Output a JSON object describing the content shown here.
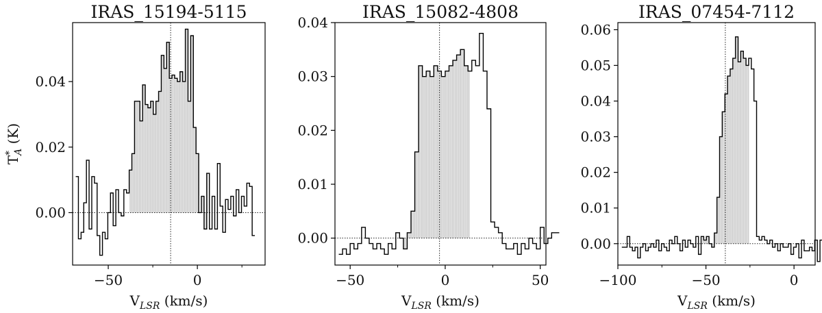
{
  "chart_data": [
    {
      "type": "area",
      "title": "IRAS_15194-5115",
      "xlabel_main": "V",
      "xlabel_sub": "LSR",
      "xlabel_unit": " (km/s)",
      "ylabel_main": "T",
      "ylabel_sup": "*",
      "ylabel_sub": "A",
      "ylabel_unit": " (K)",
      "xlim": [
        -70,
        38
      ],
      "ylim": [
        -0.016,
        0.058
      ],
      "xticks": [
        -50,
        0
      ],
      "xtick_labels": [
        "−50",
        "0"
      ],
      "xminor": [
        -25,
        25
      ],
      "yticks": [
        0.0,
        0.02,
        0.04
      ],
      "ytick_labels": [
        "0.00",
        "0.02",
        "0.04"
      ],
      "systemic_velocity": -15,
      "shade_range": [
        -38,
        6
      ],
      "series": [
        {
          "x0": -67.5,
          "dx": 1.5,
          "values": [
            0.011,
            -0.008,
            -0.006,
            0.003,
            0.016,
            -0.005,
            0.011,
            0.009,
            -0.007,
            -0.013,
            -0.006,
            -0.008,
            0.0,
            0.006,
            -0.004,
            0.007,
            0.0,
            -0.001,
            0.007,
            0.006,
            0.013,
            0.018,
            0.034,
            0.034,
            0.028,
            0.039,
            0.033,
            0.032,
            0.034,
            0.03,
            0.034,
            0.037,
            0.048,
            0.044,
            0.052,
            0.041,
            0.042,
            0.041,
            0.04,
            0.043,
            0.04,
            0.056,
            0.034,
            0.054,
            0.026,
            0.018,
            0.0,
            0.005,
            -0.005,
            0.012,
            -0.005,
            0.005,
            -0.005,
            0.015,
            0.002,
            -0.006,
            0.004,
            0.001,
            0.005,
            -0.001,
            0.007,
            0.0,
            0.005,
            0.002,
            0.009,
            0.008,
            -0.007
          ]
        }
      ]
    },
    {
      "type": "area",
      "title": "IRAS_15082-4808",
      "xlabel_main": "V",
      "xlabel_sub": "LSR",
      "xlabel_unit": " (km/s)",
      "xlim": [
        -58,
        53
      ],
      "ylim": [
        -0.005,
        0.04
      ],
      "xticks": [
        -50,
        0,
        50
      ],
      "xtick_labels": [
        "−50",
        "0",
        "50"
      ],
      "xminor": [
        -25,
        25
      ],
      "yticks": [
        0.0,
        0.01,
        0.02,
        0.03,
        0.04
      ],
      "ytick_labels": [
        "0.00",
        "0.01",
        "0.02",
        "0.03",
        "0.04"
      ],
      "systemic_velocity": -3,
      "shade_range": [
        -22.5,
        13
      ],
      "series": [
        {
          "x0": -55,
          "dx": 2,
          "values": [
            -0.003,
            -0.002,
            -0.003,
            -0.001,
            -0.002,
            -0.001,
            0.002,
            0.0,
            -0.001,
            -0.002,
            -0.001,
            -0.002,
            -0.003,
            -0.001,
            -0.002,
            0.001,
            0.0,
            -0.002,
            0.001,
            0.005,
            0.016,
            0.032,
            0.03,
            0.031,
            0.03,
            0.032,
            0.031,
            0.03,
            0.031,
            0.032,
            0.033,
            0.034,
            0.035,
            0.032,
            0.031,
            0.033,
            0.032,
            0.038,
            0.031,
            0.024,
            0.003,
            0.002,
            0.001,
            -0.001,
            -0.002,
            -0.002,
            -0.001,
            -0.003,
            -0.001,
            -0.002,
            0.0,
            -0.001,
            -0.002,
            0.002,
            -0.001,
            0.0,
            0.001,
            0.001
          ]
        }
      ]
    },
    {
      "type": "area",
      "title": "IRAS_07454-7112",
      "xlabel_main": "V",
      "xlabel_sub": "LSR",
      "xlabel_unit": " (km/s)",
      "xlim": [
        -100,
        12
      ],
      "ylim": [
        -0.006,
        0.062
      ],
      "xticks": [
        -100,
        -50,
        0
      ],
      "xtick_labels": [
        "−100",
        "−50",
        "0"
      ],
      "xminor": [
        -75,
        -25
      ],
      "yticks": [
        0.0,
        0.01,
        0.02,
        0.03,
        0.04,
        0.05,
        0.06
      ],
      "ytick_labels": [
        "0.00",
        "0.01",
        "0.02",
        "0.03",
        "0.04",
        "0.05",
        "0.06"
      ],
      "systemic_velocity": -39,
      "shade_range": [
        -52,
        -25.5
      ],
      "series": [
        {
          "x0": -97,
          "dx": 1.5,
          "values": [
            -0.001,
            -0.001,
            0.002,
            -0.001,
            -0.002,
            -0.001,
            -0.004,
            -0.001,
            0.0,
            -0.002,
            -0.001,
            0.0,
            -0.001,
            0.001,
            -0.002,
            0.0,
            -0.001,
            -0.002,
            0.001,
            0.0,
            0.002,
            0.0,
            -0.002,
            0.001,
            -0.001,
            0.001,
            0.0,
            -0.001,
            0.002,
            -0.003,
            0.002,
            0.001,
            0.002,
            0.0,
            -0.001,
            0.003,
            0.013,
            0.03,
            0.037,
            0.042,
            0.047,
            0.049,
            0.052,
            0.058,
            0.051,
            0.054,
            0.052,
            0.05,
            0.052,
            0.049,
            0.04,
            0.002,
            0.001,
            0.002,
            0.001,
            0.0,
            0.001,
            -0.001,
            0.0,
            -0.002,
            0.0,
            -0.001,
            -0.001,
            0.0,
            -0.003,
            -0.001,
            0.0,
            -0.004,
            0.001,
            -0.002,
            -0.002,
            -0.001,
            -0.002,
            0.001,
            -0.005,
            0.001,
            0.0,
            0.002
          ]
        }
      ]
    }
  ]
}
